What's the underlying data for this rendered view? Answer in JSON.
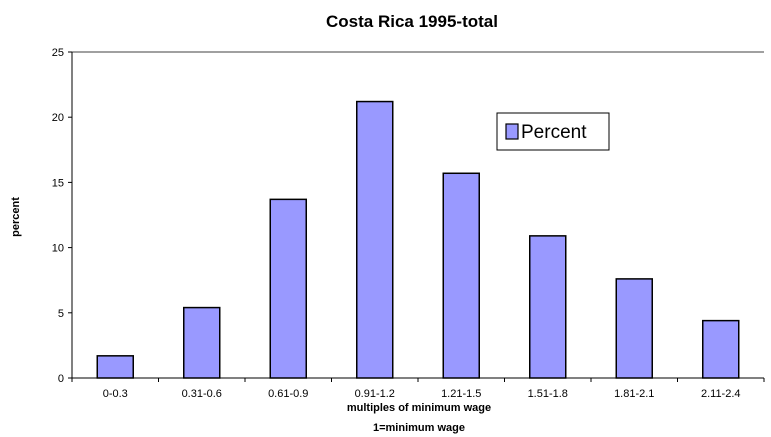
{
  "chart_data": {
    "type": "bar",
    "title": "Costa Rica 1995-total",
    "xlabel": "multiples of minimum wage",
    "xlabel_note": "1=minimum wage",
    "ylabel": "percent",
    "categories": [
      "0-0.3",
      "0.31-0.6",
      "0.61-0.9",
      "0.91-1.2",
      "1.21-1.5",
      "1.51-1.8",
      "1.81-2.1",
      "2.11-2.4"
    ],
    "series": [
      {
        "name": "Percent",
        "values": [
          1.7,
          5.4,
          13.7,
          21.2,
          15.7,
          10.9,
          7.6,
          4.4
        ],
        "color": "#9999ff"
      }
    ],
    "ylim": [
      0,
      25
    ],
    "yticks": [
      0,
      5,
      10,
      15,
      20,
      25
    ],
    "grid": false,
    "legend_position": "top-right"
  }
}
